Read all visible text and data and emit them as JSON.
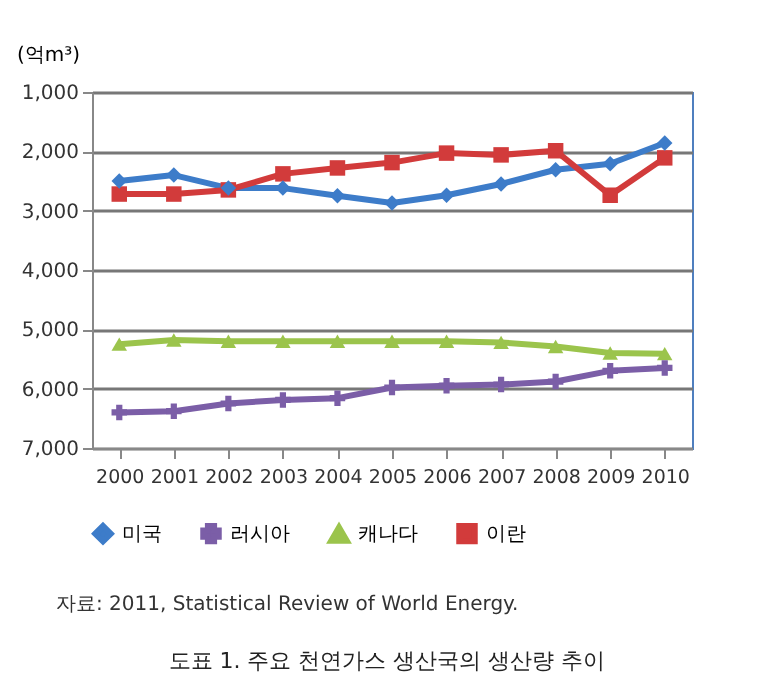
{
  "chart_data": {
    "type": "line",
    "title": "도표 1. 주요 천연가스 생산국의 생산량 추이",
    "ylabel": "(억m³)",
    "annotations": [
      "자료: 2011, Statistical Review of World Energy."
    ],
    "categories": [
      "2000",
      "2001",
      "2002",
      "2003",
      "2004",
      "2005",
      "2006",
      "2007",
      "2008",
      "2009",
      "2010"
    ],
    "series": [
      {
        "name": "미국",
        "color": "#3d7cc9",
        "marker": "diamond",
        "values": [
          2500,
          2400,
          2620,
          2620,
          2750,
          2870,
          2740,
          2550,
          2310,
          2210,
          1860
        ]
      },
      {
        "name": "러시아",
        "color": "#7b5ea7",
        "marker": "cross",
        "values": [
          6400,
          6380,
          6250,
          6190,
          6160,
          5980,
          5950,
          5930,
          5880,
          5700,
          5650
        ]
      },
      {
        "name": "캐나다",
        "color": "#9bc44c",
        "marker": "triangle",
        "values": [
          5250,
          5180,
          5200,
          5200,
          5200,
          5200,
          5200,
          5220,
          5290,
          5400,
          5410
        ]
      },
      {
        "name": "이란",
        "color": "#d23b3b",
        "marker": "square",
        "values": [
          2720,
          2720,
          2650,
          2380,
          2280,
          2190,
          2030,
          2060,
          1990,
          2740,
          2110
        ]
      }
    ],
    "ylim": [
      7000,
      1000
    ],
    "yticks": [
      {
        "value": 1000,
        "label": "1,000"
      },
      {
        "value": 2000,
        "label": "2,000"
      },
      {
        "value": 3000,
        "label": "3,000"
      },
      {
        "value": 4000,
        "label": "4,000"
      },
      {
        "value": 5000,
        "label": "5,000"
      },
      {
        "value": 6000,
        "label": "6,000"
      },
      {
        "value": 7000,
        "label": "7,000"
      }
    ],
    "grid": "y",
    "legend": "bottom",
    "line_style": "solid"
  }
}
